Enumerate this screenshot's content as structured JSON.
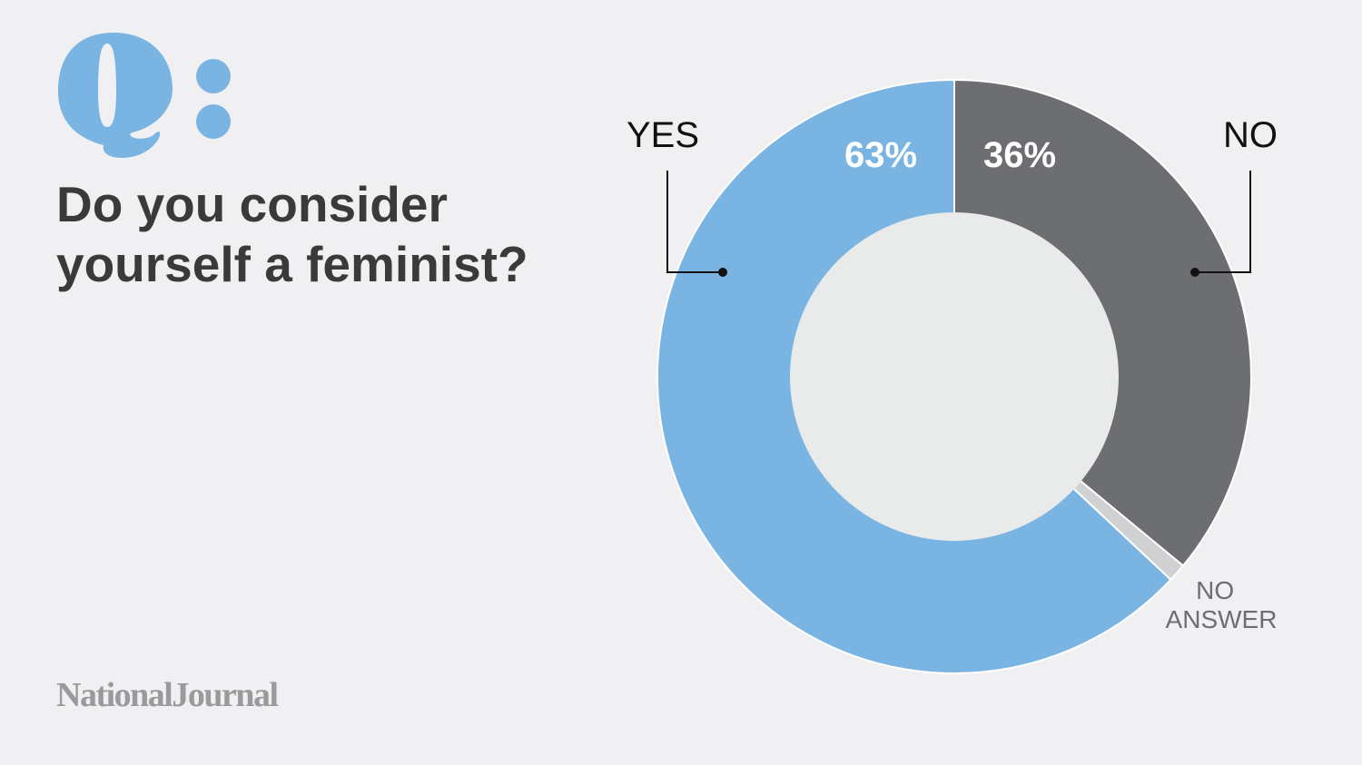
{
  "question": {
    "line1": "Do you consider",
    "line2": "yourself a feminist?"
  },
  "logo": {
    "icon": "q-colon-icon",
    "letter": "Q",
    "color": "#7ab4e3"
  },
  "brand": "NationalJournal",
  "chart_data": {
    "type": "pie",
    "donut": true,
    "title": "",
    "series": [
      {
        "name": "YES",
        "value": 63,
        "label": "63%",
        "color": "#7ab4e3"
      },
      {
        "name": "NO",
        "value": 36,
        "label": "36%",
        "color": "#6d6e71"
      },
      {
        "name": "NO ANSWER",
        "value": 1,
        "label": "",
        "color": "#d0d1d3"
      }
    ],
    "hole_color": "#e9eaea",
    "legend": "callouts"
  }
}
